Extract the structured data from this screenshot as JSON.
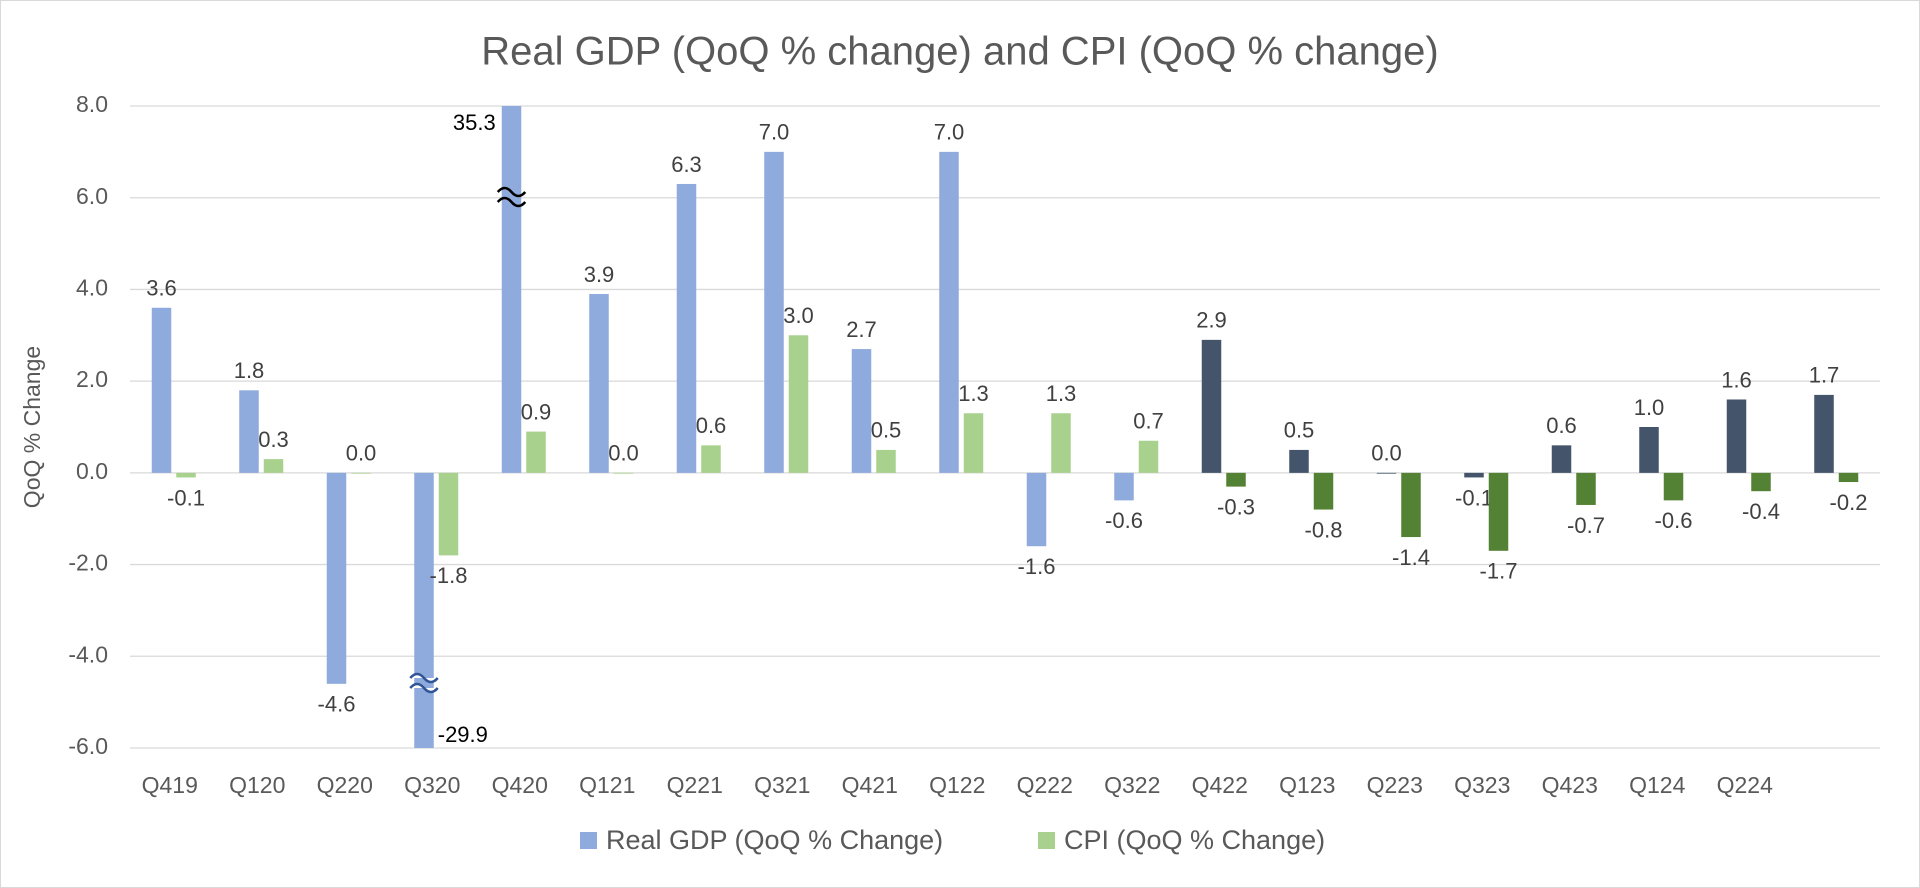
{
  "chart_data": {
    "type": "bar",
    "title": "Real GDP (QoQ % change) and CPI (QoQ % change)",
    "y_label": "QoQ % Change",
    "categories": [
      "Q419",
      "Q120",
      "Q220",
      "Q320",
      "Q420",
      "Q121",
      "Q221",
      "Q321",
      "Q421",
      "Q122",
      "Q222",
      "Q322",
      "Q422",
      "Q123",
      "Q223",
      "Q323",
      "Q423",
      "Q124",
      "Q224",
      null
    ],
    "series": [
      {
        "name": "Real GDP (QoQ % Change)",
        "color": "#8faadc",
        "colors": [
          "#8faadc",
          "#8faadc",
          "#8faadc",
          "#8faadc",
          "#8faadc",
          "#8faadc",
          "#8faadc",
          "#8faadc",
          "#8faadc",
          "#8faadc",
          "#8faadc",
          "#8faadc",
          "#44546a",
          "#44546a",
          "#44546a",
          "#44546a",
          "#44546a",
          "#44546a",
          "#44546a",
          "#44546a"
        ],
        "values": [
          3.6,
          1.8,
          -4.6,
          -29.9,
          35.3,
          3.9,
          6.3,
          7.0,
          2.7,
          7.0,
          -1.6,
          -0.6,
          2.9,
          0.5,
          0.0,
          -0.1,
          0.6,
          1.0,
          1.6,
          1.7
        ],
        "value_labels": [
          "3.6",
          "1.8",
          "-4.6",
          "-29.9",
          "35.3",
          "3.9",
          "6.3",
          "7.0",
          "2.7",
          "7.0",
          "-1.6",
          "-0.6",
          "2.9",
          "0.5",
          "0.0",
          "-0.1",
          "0.6",
          "1.0",
          "1.6",
          "1.7"
        ]
      },
      {
        "name": "CPI (QoQ % Change)",
        "color": "#a9d18e",
        "colors": [
          "#a9d18e",
          "#a9d18e",
          "#a9d18e",
          "#a9d18e",
          "#a9d18e",
          "#a9d18e",
          "#a9d18e",
          "#a9d18e",
          "#a9d18e",
          "#a9d18e",
          "#a9d18e",
          "#a9d18e",
          "#548235",
          "#548235",
          "#548235",
          "#548235",
          "#548235",
          "#548235",
          "#548235",
          "#548235"
        ],
        "values": [
          -0.1,
          0.3,
          0.0,
          -1.8,
          0.9,
          0.0,
          0.6,
          3.0,
          0.5,
          1.3,
          1.3,
          0.7,
          -0.3,
          -0.8,
          -1.4,
          -1.7,
          -0.7,
          -0.6,
          -0.4,
          -0.2
        ],
        "value_labels": [
          "-0.1",
          "0.3",
          "0.0",
          "-1.8",
          "0.9",
          "0.0",
          "0.6",
          "3.0",
          "0.5",
          "1.3",
          "1.3",
          "0.7",
          "-0.3",
          "-0.8",
          "-1.4",
          "-1.7",
          "-0.7",
          "-0.6",
          "-0.4",
          "-0.2"
        ]
      }
    ],
    "ylim": [
      -6,
      8
    ],
    "yticks": [
      {
        "value": -6,
        "label": "-6.0"
      },
      {
        "value": -4,
        "label": "-4.0"
      },
      {
        "value": -2,
        "label": "-2.0"
      },
      {
        "value": 0,
        "label": "0.0"
      },
      {
        "value": 2,
        "label": "2.0"
      },
      {
        "value": 4,
        "label": "4.0"
      },
      {
        "value": 6,
        "label": "6.0"
      },
      {
        "value": 8,
        "label": "8.0"
      }
    ],
    "grid": true,
    "legend": "bottom"
  }
}
